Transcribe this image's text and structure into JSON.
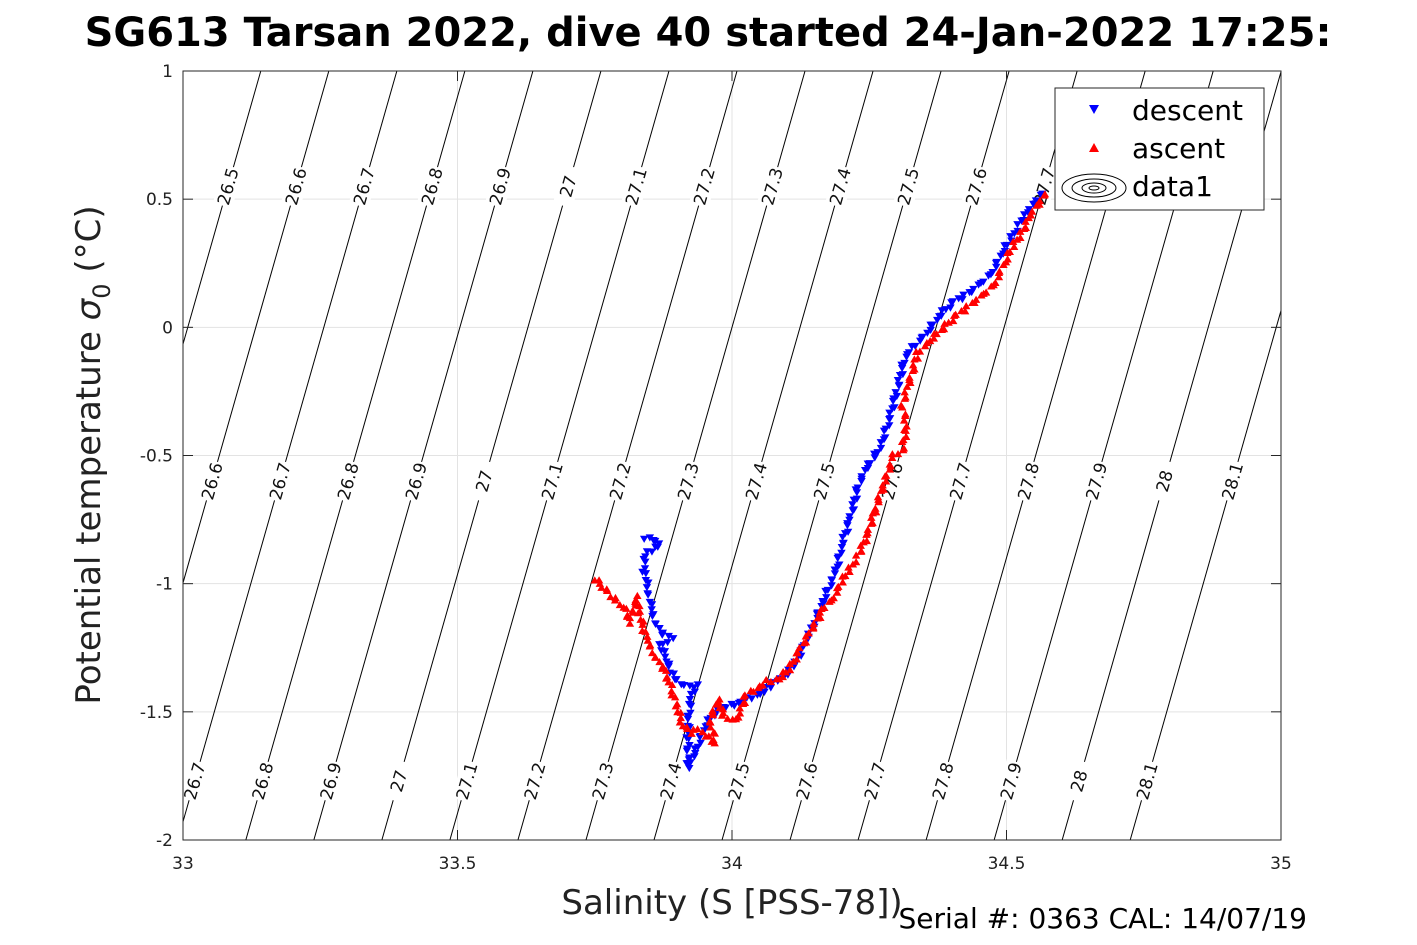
{
  "chart_data": {
    "type": "scatter",
    "title": "SG613 Tarsan 2022, dive 40 started 24-Jan-2022 17:25:",
    "xlabel": "Salinity (S [PSS-78])",
    "ylabel_prefix": "Potential temperature ",
    "ylabel_symbol": "σ",
    "ylabel_subscript": "0",
    "ylabel_suffix": " (°C)",
    "xlim": [
      33,
      35
    ],
    "ylim": [
      -2,
      1
    ],
    "xticks": [
      33,
      33.5,
      34,
      34.5,
      35
    ],
    "xtick_labels": [
      "33",
      "33.5",
      "34",
      "34.5",
      "35"
    ],
    "yticks": [
      -2,
      -1.5,
      -1,
      -0.5,
      0,
      0.5,
      1
    ],
    "ytick_labels": [
      "-2",
      "-1.5",
      "-1",
      "-0.5",
      "0",
      "0.5",
      "1"
    ],
    "grid": true,
    "legend_position": "top-right",
    "legend": [
      {
        "name": "descent",
        "marker": "triangle-down",
        "color": "#0000ff"
      },
      {
        "name": "ascent",
        "marker": "triangle-up",
        "color": "#ff0000"
      },
      {
        "name": "data1",
        "marker": "contour",
        "color": "#000000"
      }
    ],
    "density_contours": {
      "levels": [
        26.5,
        26.6,
        26.7,
        26.8,
        26.9,
        27.0,
        27.1,
        27.2,
        27.3,
        27.4,
        27.5,
        27.6,
        27.7,
        27.8,
        27.9,
        28.0,
        28.1
      ],
      "labels": [
        "26.5",
        "26.6",
        "26.7",
        "26.8",
        "26.9",
        "27",
        "27.1",
        "27.2",
        "27.3",
        "27.4",
        "27.5",
        "27.6",
        "27.7",
        "27.8",
        "27.9",
        "28",
        "28.1"
      ],
      "top_label_levels": [
        26.5,
        26.6,
        26.7,
        26.8,
        26.9,
        27.0,
        27.1,
        27.2,
        27.3,
        27.4,
        27.5,
        27.6,
        27.7
      ],
      "mid_label_levels": [
        26.6,
        26.7,
        26.8,
        26.9,
        27.0,
        27.1,
        27.2,
        27.3,
        27.4,
        27.5,
        27.6,
        27.7,
        27.8,
        27.9,
        28.0,
        28.1
      ],
      "bottom_label_levels": [
        26.6,
        26.7,
        26.8,
        26.9,
        27.0,
        27.1,
        27.2,
        27.3,
        27.4,
        27.5,
        27.6,
        27.7,
        27.8,
        27.9,
        28.0,
        28.1
      ]
    },
    "series": [
      {
        "name": "descent",
        "path": [
          [
            33.84,
            -0.82
          ],
          [
            33.855,
            -0.83
          ],
          [
            33.87,
            -0.85
          ],
          [
            33.858,
            -0.86
          ],
          [
            33.843,
            -0.89
          ],
          [
            33.838,
            -0.95
          ],
          [
            33.845,
            -1.0
          ],
          [
            33.85,
            -1.05
          ],
          [
            33.852,
            -1.1
          ],
          [
            33.86,
            -1.15
          ],
          [
            33.875,
            -1.2
          ],
          [
            33.89,
            -1.22
          ],
          [
            33.87,
            -1.24
          ],
          [
            33.88,
            -1.3
          ],
          [
            33.895,
            -1.37
          ],
          [
            33.915,
            -1.4
          ],
          [
            33.935,
            -1.4
          ],
          [
            33.925,
            -1.45
          ],
          [
            33.92,
            -1.55
          ],
          [
            33.92,
            -1.72
          ],
          [
            33.935,
            -1.65
          ],
          [
            33.95,
            -1.56
          ],
          [
            33.97,
            -1.5
          ],
          [
            33.99,
            -1.48
          ],
          [
            34.01,
            -1.47
          ],
          [
            34.03,
            -1.45
          ],
          [
            34.05,
            -1.43
          ],
          [
            34.07,
            -1.4
          ],
          [
            34.09,
            -1.37
          ],
          [
            34.11,
            -1.33
          ],
          [
            34.13,
            -1.25
          ],
          [
            34.15,
            -1.15
          ],
          [
            34.17,
            -1.05
          ],
          [
            34.19,
            -0.95
          ],
          [
            34.2,
            -0.85
          ],
          [
            34.215,
            -0.75
          ],
          [
            34.23,
            -0.62
          ],
          [
            34.245,
            -0.55
          ],
          [
            34.262,
            -0.5
          ],
          [
            34.275,
            -0.44
          ],
          [
            34.288,
            -0.35
          ],
          [
            34.3,
            -0.25
          ],
          [
            34.315,
            -0.12
          ],
          [
            34.33,
            -0.08
          ],
          [
            34.355,
            -0.02
          ],
          [
            34.38,
            0.05
          ],
          [
            34.405,
            0.1
          ],
          [
            34.43,
            0.13
          ],
          [
            34.455,
            0.17
          ],
          [
            34.475,
            0.22
          ],
          [
            34.495,
            0.3
          ],
          [
            34.51,
            0.35
          ],
          [
            34.525,
            0.41
          ],
          [
            34.54,
            0.45
          ],
          [
            34.555,
            0.5
          ],
          [
            34.565,
            0.52
          ]
        ]
      },
      {
        "name": "ascent",
        "path": [
          [
            33.75,
            -0.98
          ],
          [
            33.77,
            -1.02
          ],
          [
            33.79,
            -1.07
          ],
          [
            33.805,
            -1.1
          ],
          [
            33.815,
            -1.15
          ],
          [
            33.82,
            -1.1
          ],
          [
            33.825,
            -1.05
          ],
          [
            33.832,
            -1.12
          ],
          [
            33.845,
            -1.22
          ],
          [
            33.86,
            -1.28
          ],
          [
            33.875,
            -1.33
          ],
          [
            33.888,
            -1.4
          ],
          [
            33.9,
            -1.48
          ],
          [
            33.91,
            -1.55
          ],
          [
            33.925,
            -1.58
          ],
          [
            33.94,
            -1.57
          ],
          [
            33.955,
            -1.6
          ],
          [
            33.97,
            -1.62
          ],
          [
            33.96,
            -1.53
          ],
          [
            33.975,
            -1.45
          ],
          [
            33.985,
            -1.52
          ],
          [
            34.005,
            -1.53
          ],
          [
            34.015,
            -1.5
          ],
          [
            34.025,
            -1.43
          ],
          [
            34.045,
            -1.41
          ],
          [
            34.065,
            -1.38
          ],
          [
            34.085,
            -1.37
          ],
          [
            34.105,
            -1.33
          ],
          [
            34.125,
            -1.25
          ],
          [
            34.145,
            -1.18
          ],
          [
            34.165,
            -1.1
          ],
          [
            34.185,
            -1.05
          ],
          [
            34.2,
            -0.99
          ],
          [
            34.215,
            -0.94
          ],
          [
            34.232,
            -0.88
          ],
          [
            34.248,
            -0.8
          ],
          [
            34.262,
            -0.7
          ],
          [
            34.278,
            -0.6
          ],
          [
            34.295,
            -0.5
          ],
          [
            34.31,
            -0.48
          ],
          [
            34.318,
            -0.38
          ],
          [
            34.31,
            -0.3
          ],
          [
            34.322,
            -0.22
          ],
          [
            34.338,
            -0.1
          ],
          [
            34.36,
            -0.05
          ],
          [
            34.385,
            0.0
          ],
          [
            34.41,
            0.05
          ],
          [
            34.435,
            0.09
          ],
          [
            34.46,
            0.13
          ],
          [
            34.48,
            0.18
          ],
          [
            34.5,
            0.27
          ],
          [
            34.515,
            0.33
          ],
          [
            34.53,
            0.38
          ],
          [
            34.545,
            0.44
          ],
          [
            34.562,
            0.5
          ],
          [
            34.57,
            0.52
          ]
        ]
      }
    ]
  },
  "footer": {
    "serial_text": "Serial #: 0363  CAL: 14/07/19"
  }
}
